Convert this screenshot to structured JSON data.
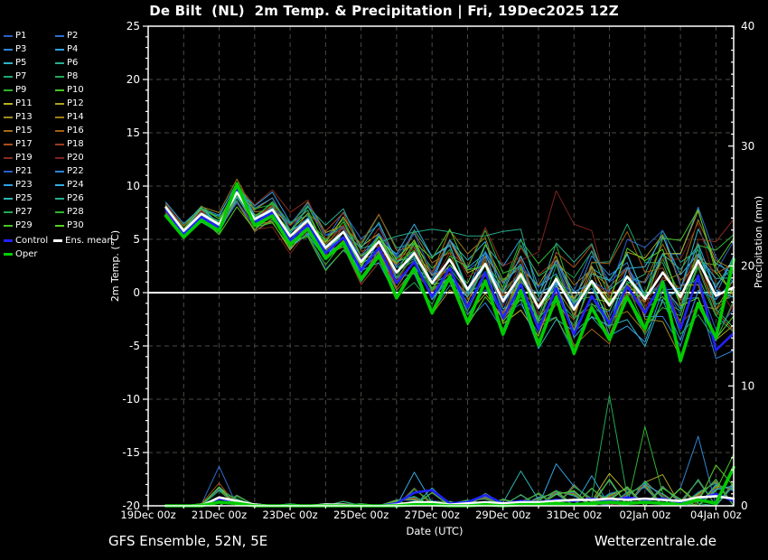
{
  "title": "De Bilt  (NL)  2m Temp. & Precipitation | Fri, 19Dec2025 12Z",
  "footer": {
    "left": "GFS Ensemble, 52N, 5E",
    "right": "Wetterzentrale.de"
  },
  "colors": {
    "background": "#000000",
    "text": "#ffffff",
    "grid": "#4a4a44",
    "zero_line": "#ffffff",
    "axis": "#ffffff",
    "control": "#2222ff",
    "ens_mean": "#ffffff",
    "oper": "#00cc00"
  },
  "chart_data": {
    "type": "line",
    "title": "De Bilt  (NL)  2m Temp. & Precipitation | Fri, 19Dec2025 12Z",
    "x": {
      "label": "Date (UTC)",
      "tick_labels": [
        "19Dec 00z",
        "21Dec 00z",
        "23Dec 00z",
        "25Dec 00z",
        "27Dec 00z",
        "29Dec 00z",
        "31Dec 00z",
        "02Jan 00z",
        "04Jan 00z"
      ],
      "tick_days": [
        0,
        2,
        4,
        6,
        8,
        10,
        12,
        14,
        16
      ],
      "minor_tick_step_days": 1,
      "grid_step_days": 1,
      "range_days": [
        0,
        16.5
      ],
      "sample_start": 0.5,
      "sample_step": 0.5
    },
    "y_left": {
      "label": "2m Temp. (°C)",
      "min": -20,
      "max": 25,
      "tick_step": 5,
      "minor_step": 1,
      "zero_line": 0
    },
    "y_right": {
      "label": "Precipitation (mm)",
      "min": 0,
      "max": 40,
      "tick_step": 10,
      "minor_step": 1
    },
    "series": {
      "mean": {
        "name": "Ens. mean",
        "color": "#ffffff",
        "width": 2.6,
        "temp": [
          8.0,
          5.8,
          7.4,
          6.4,
          9.4,
          6.9,
          7.8,
          5.3,
          6.8,
          4.2,
          5.7,
          2.9,
          4.8,
          1.9,
          3.7,
          0.9,
          3.1,
          0.3,
          2.7,
          -0.8,
          1.7,
          -1.4,
          1.3,
          -1.6,
          1.1,
          -1.2,
          1.5,
          -0.6,
          1.9,
          -0.4,
          3.0,
          -0.3,
          0.5
        ],
        "precip": [
          0,
          0,
          0,
          0.7,
          0.4,
          0.1,
          0,
          0,
          0,
          0.1,
          0.1,
          0,
          0,
          0.1,
          0.3,
          0.3,
          0.1,
          0.2,
          0.3,
          0.2,
          0.3,
          0.3,
          0.4,
          0.5,
          0.5,
          0.6,
          0.5,
          0.6,
          0.5,
          0.4,
          0.7,
          0.8,
          0.6
        ]
      },
      "control": {
        "name": "Control",
        "color": "#2222ff",
        "width": 2.6,
        "temp": [
          7.8,
          5.5,
          7.1,
          6.1,
          9.8,
          6.6,
          7.5,
          4.9,
          6.4,
          3.7,
          5.2,
          2.1,
          4.2,
          0.9,
          2.9,
          -0.4,
          2.3,
          -1.4,
          1.9,
          -2.4,
          0.8,
          -3.4,
          0.4,
          -3.9,
          -0.3,
          -2.9,
          0.6,
          -1.9,
          1.1,
          -3.4,
          1.6,
          -5.4,
          -3.8
        ],
        "precip": [
          0,
          0,
          0,
          0.6,
          0.3,
          0,
          0,
          0,
          0,
          0,
          0.1,
          0,
          0,
          0.2,
          1.1,
          1.3,
          0.2,
          0.3,
          0.9,
          0.2,
          0.4,
          0.3,
          0.5,
          0.4,
          0.6,
          0.4,
          0.7,
          0.5,
          0.6,
          0.3,
          0.5,
          1.0,
          0.4
        ]
      },
      "oper": {
        "name": "Oper",
        "color": "#00cc00",
        "width": 3.6,
        "temp": [
          7.2,
          5.2,
          6.8,
          5.8,
          10.2,
          6.3,
          7.2,
          4.5,
          6.0,
          3.2,
          4.7,
          1.3,
          3.5,
          -0.5,
          2.3,
          -1.9,
          1.5,
          -2.8,
          1.1,
          -3.9,
          0.2,
          -4.9,
          -0.4,
          -5.7,
          -1.4,
          -4.4,
          -0.4,
          -3.4,
          1.0,
          -6.4,
          -1.0,
          -4.2,
          3.1
        ],
        "precip": [
          0,
          0,
          0,
          0.3,
          0.2,
          0,
          0,
          0,
          0,
          0,
          0,
          0,
          0,
          0,
          0.1,
          0.1,
          0,
          0,
          0.1,
          0,
          0.1,
          0.1,
          0.2,
          0.1,
          0.2,
          0.3,
          0.2,
          0.3,
          0.2,
          0.1,
          0.5,
          0.2,
          3.2
        ]
      }
    },
    "ensemble": {
      "spread": [
        0.4,
        0.5,
        0.7,
        0.8,
        1.0,
        1.1,
        1.2,
        1.3,
        1.5,
        1.6,
        1.7,
        1.8,
        2.0,
        2.1,
        2.2,
        2.3,
        2.5,
        2.6,
        2.7,
        2.8,
        3.0,
        3.1,
        3.2,
        3.4,
        3.5,
        3.6,
        3.8,
        3.9,
        4.0,
        4.2,
        4.3,
        4.4,
        4.6
      ],
      "precip_event_base": [
        0,
        0,
        0.1,
        1.0,
        0.5,
        0.1,
        0,
        0.1,
        0,
        0.1,
        0.2,
        0.1,
        0,
        0.3,
        0.8,
        0.6,
        0.2,
        0.3,
        0.6,
        0.3,
        0.5,
        0.6,
        0.8,
        1.0,
        0.8,
        1.2,
        0.9,
        1.3,
        0.9,
        0.8,
        1.2,
        1.3,
        1.2
      ],
      "members": [
        {
          "name": "P1",
          "color": "#2a5fc4",
          "seed": 1
        },
        {
          "name": "P2",
          "color": "#2f6ecf",
          "seed": 2
        },
        {
          "name": "P3",
          "color": "#2f84d4",
          "seed": 3
        },
        {
          "name": "P4",
          "color": "#31a0de",
          "seed": 4
        },
        {
          "name": "P5",
          "color": "#2fb4c8",
          "seed": 5
        },
        {
          "name": "P6",
          "color": "#27ae8d",
          "seed": 6
        },
        {
          "name": "P7",
          "color": "#1fa873",
          "seed": 7
        },
        {
          "name": "P8",
          "color": "#23aa55",
          "seed": 8
        },
        {
          "name": "P9",
          "color": "#2fb42f",
          "seed": 9
        },
        {
          "name": "P10",
          "color": "#4cc321",
          "seed": 10
        },
        {
          "name": "P11",
          "color": "#b7b226",
          "seed": 11
        },
        {
          "name": "P12",
          "color": "#aaa220",
          "seed": 12
        },
        {
          "name": "P13",
          "color": "#a28c1d",
          "seed": 13
        },
        {
          "name": "P14",
          "color": "#9d7e19",
          "seed": 14
        },
        {
          "name": "P15",
          "color": "#a4691b",
          "seed": 15
        },
        {
          "name": "P16",
          "color": "#a35c16",
          "seed": 16
        },
        {
          "name": "P17",
          "color": "#a84f1d",
          "seed": 17
        },
        {
          "name": "P18",
          "color": "#9a3b20",
          "seed": 18
        },
        {
          "name": "P19",
          "color": "#8c2b1f",
          "seed": 19
        },
        {
          "name": "P20",
          "color": "#7c231d",
          "seed": 20
        },
        {
          "name": "P21",
          "color": "#2a5fc4",
          "seed": 21
        },
        {
          "name": "P22",
          "color": "#2f84d4",
          "seed": 22
        },
        {
          "name": "P23",
          "color": "#31a0de",
          "seed": 23
        },
        {
          "name": "P24",
          "color": "#36abe2",
          "seed": 24
        },
        {
          "name": "P25",
          "color": "#2fb4b4",
          "seed": 25
        },
        {
          "name": "P26",
          "color": "#27ae8d",
          "seed": 26
        },
        {
          "name": "P27",
          "color": "#23aa55",
          "seed": 27
        },
        {
          "name": "P28",
          "color": "#2fb42f",
          "seed": 28
        },
        {
          "name": "P29",
          "color": "#47c626",
          "seed": 29
        },
        {
          "name": "P30",
          "color": "#58d120",
          "seed": 30
        }
      ],
      "anomalies": [
        {
          "member": "P20",
          "type": "temp_bump",
          "center_day": 11.5,
          "amplitude": 9.5,
          "width_days": 1.3
        },
        {
          "member": "P19",
          "type": "temp_bump",
          "center_day": 4.5,
          "amplitude": 3.0,
          "width_days": 1.0
        },
        {
          "member": "P26",
          "type": "temp_plateau",
          "from_day": 7.0,
          "to_day": 10.5,
          "value": 5.6
        }
      ],
      "precip_spikes": [
        {
          "member": "P2",
          "day": 2.0,
          "mm": 3.3
        },
        {
          "member": "P17",
          "day": 2.0,
          "mm": 1.9
        },
        {
          "member": "P24",
          "day": 7.5,
          "mm": 2.8
        },
        {
          "member": "P25",
          "day": 8.0,
          "mm": 1.5
        },
        {
          "member": "P25",
          "day": 10.5,
          "mm": 2.9
        },
        {
          "member": "P23",
          "day": 11.5,
          "mm": 3.5
        },
        {
          "member": "P4",
          "day": 12.5,
          "mm": 2.5
        },
        {
          "member": "P27",
          "day": 13.0,
          "mm": 9.2
        },
        {
          "member": "P11",
          "day": 13.0,
          "mm": 2.7
        },
        {
          "member": "P28",
          "day": 14.0,
          "mm": 6.6
        },
        {
          "member": "P12",
          "day": 14.5,
          "mm": 2.6
        },
        {
          "member": "P22",
          "day": 15.5,
          "mm": 5.8
        },
        {
          "member": "P30",
          "day": 16.0,
          "mm": 3.4
        },
        {
          "member": "P29",
          "day": 16.5,
          "mm": 4.3
        }
      ]
    }
  }
}
